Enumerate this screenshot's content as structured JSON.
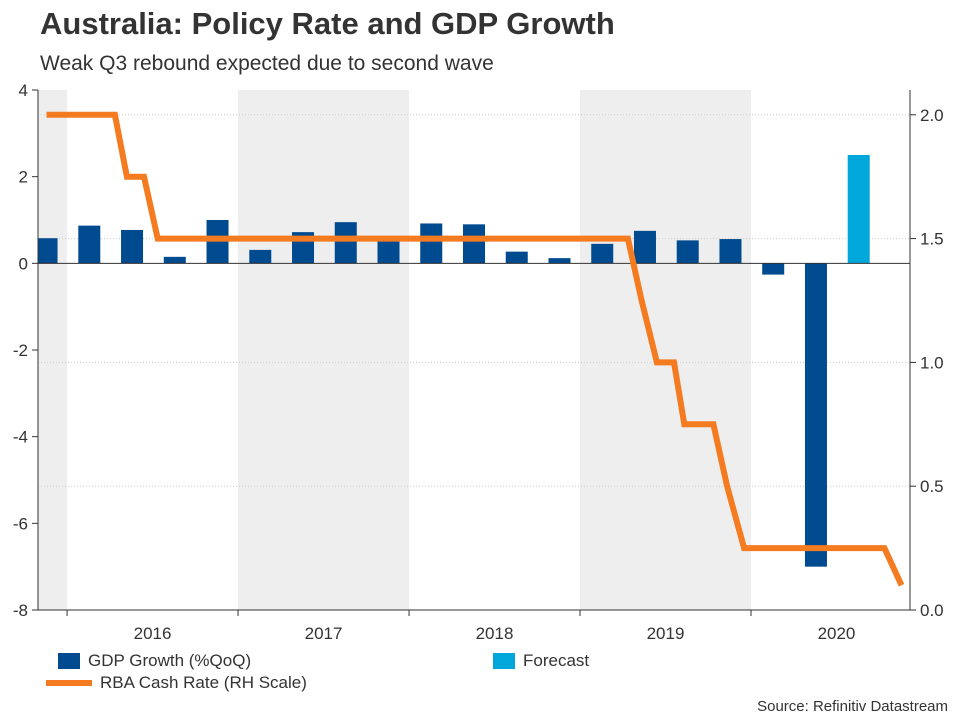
{
  "header": {
    "title": "Australia: Policy Rate and GDP Growth",
    "subtitle": "Weak Q3 rebound expected due to second wave"
  },
  "chart_data": {
    "type": "bar+line",
    "title": "Australia: Policy Rate and GDP Growth",
    "subtitle": "Weak Q3 rebound expected due to second wave",
    "x_tick_labels": [
      "2016",
      "2017",
      "2018",
      "2019",
      "2020"
    ],
    "left_axis": {
      "ylim": [
        -8,
        4
      ],
      "ticks": [
        -8,
        -6,
        -4,
        -2,
        0,
        2,
        4
      ]
    },
    "right_axis": {
      "ylim": [
        0.0,
        2.1
      ],
      "ticks": [
        "0.0",
        "0.5",
        "1.0",
        "1.5",
        "2.0"
      ]
    },
    "x_range": [
      2015.55,
      2020.65
    ],
    "shaded_years": [
      [
        2015.55,
        2015.72
      ],
      [
        2016.72,
        2017.72
      ],
      [
        2018.72,
        2019.72
      ]
    ],
    "series": [
      {
        "name": "GDP Growth (%QoQ)",
        "type": "bar",
        "axis": "left",
        "color": "#004A8F",
        "x": [
          2015.6,
          2015.85,
          2016.1,
          2016.35,
          2016.6,
          2016.85,
          2017.1,
          2017.35,
          2017.6,
          2017.85,
          2018.1,
          2018.35,
          2018.6,
          2018.85,
          2019.1,
          2019.35,
          2019.6,
          2019.85,
          2020.1,
          2020.35
        ],
        "values": [
          0.58,
          0.87,
          0.77,
          0.15,
          1.0,
          0.31,
          0.72,
          0.95,
          0.56,
          0.92,
          0.9,
          0.27,
          0.12,
          0.45,
          0.75,
          0.53,
          0.56,
          -0.26,
          -7.0,
          null
        ]
      },
      {
        "name": "Forecast",
        "type": "bar",
        "axis": "left",
        "color": "#00A7DA",
        "x": [
          2020.35
        ],
        "values": [
          2.5
        ]
      },
      {
        "name": "RBA Cash Rate (RH Scale)",
        "type": "line",
        "axis": "right",
        "color": "#F47B20",
        "x": [
          2015.6,
          2016.0,
          2016.07,
          2016.17,
          2016.25,
          2016.33,
          2019.0,
          2019.08,
          2019.17,
          2019.27,
          2019.33,
          2019.5,
          2019.58,
          2019.68,
          2019.75,
          2020.0,
          2020.08,
          2020.18,
          2020.33,
          2020.42,
          2020.45,
          2020.5,
          2020.6
        ],
        "values": [
          2.0,
          2.0,
          1.75,
          1.75,
          1.5,
          1.5,
          1.5,
          1.25,
          1.0,
          1.0,
          0.75,
          0.75,
          0.5,
          0.25,
          0.25,
          0.25,
          0.25,
          0.25,
          0.25,
          0.25,
          0.25,
          0.25,
          0.1
        ]
      }
    ],
    "legend": [
      {
        "label": "GDP Growth (%QoQ)",
        "kind": "box",
        "color": "#004A8F"
      },
      {
        "label": "Forecast",
        "kind": "box",
        "color": "#00A7DA"
      },
      {
        "label": "RBA Cash Rate (RH Scale)",
        "kind": "line",
        "color": "#F47B20"
      }
    ],
    "legend_position": "bottom-left",
    "source": "Source: Refinitiv Datastream",
    "grid": true
  }
}
